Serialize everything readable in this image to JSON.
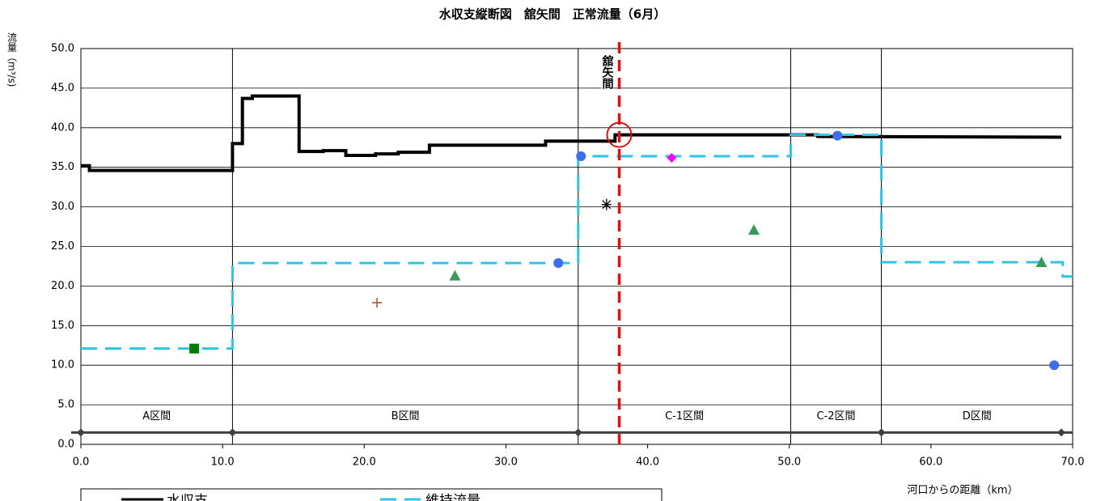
{
  "chart_data": {
    "type": "line",
    "title": "水収支縦断図　舘矢間　正常流量（6月）",
    "y_label": "流量（m³/s)",
    "x_label": "河口からの距離（km）",
    "xlim": [
      0,
      70
    ],
    "ylim": [
      0,
      50
    ],
    "xticks": [
      {
        "value": 0,
        "label": "0.0"
      },
      {
        "value": 10,
        "label": "10.0"
      },
      {
        "value": 20,
        "label": "20.0"
      },
      {
        "value": 30,
        "label": "30.0"
      },
      {
        "value": 40,
        "label": "40.0"
      },
      {
        "value": 50,
        "label": "50.0"
      },
      {
        "value": 60,
        "label": "60.0"
      },
      {
        "value": 70,
        "label": "70.0"
      }
    ],
    "yticks": [
      {
        "value": 0,
        "label": "0.0"
      },
      {
        "value": 5,
        "label": "5.0"
      },
      {
        "value": 10,
        "label": "10.0"
      },
      {
        "value": 15,
        "label": "15.0"
      },
      {
        "value": 20,
        "label": "20.0"
      },
      {
        "value": 25,
        "label": "25.0"
      },
      {
        "value": 30,
        "label": "30.0"
      },
      {
        "value": 35,
        "label": "35.0"
      },
      {
        "value": 40,
        "label": "40.0"
      },
      {
        "value": 45,
        "label": "45.0"
      },
      {
        "value": 50,
        "label": "50.0"
      }
    ],
    "grid": true,
    "series": [
      {
        "name": "水収支",
        "color": "#000000",
        "style": "solid",
        "x": [
          0,
          0.6,
          0.6,
          10.7,
          10.7,
          11.4,
          11.4,
          12.1,
          12.1,
          15.4,
          15.4,
          17.1,
          17.1,
          18.7,
          18.7,
          20.8,
          20.8,
          22.4,
          22.4,
          24.6,
          24.6,
          32.8,
          32.8,
          37.7,
          37.7,
          52.0,
          52.0,
          69.2
        ],
        "values": [
          35.2,
          35.2,
          34.6,
          34.6,
          38.0,
          38.0,
          43.7,
          43.7,
          44.0,
          44.0,
          37.0,
          37.0,
          37.1,
          37.1,
          36.5,
          36.5,
          36.7,
          36.7,
          36.9,
          36.9,
          37.8,
          37.8,
          38.3,
          38.3,
          39.1,
          39.1,
          38.9,
          38.8
        ]
      },
      {
        "name": "維持流量",
        "color": "#2ec4ea",
        "style": "dashed",
        "x": [
          0,
          10.7,
          10.7,
          35.1,
          35.1,
          50.1,
          50.1,
          56.5,
          56.5,
          69.3,
          69.3,
          70
        ],
        "values": [
          12.1,
          12.1,
          22.9,
          22.9,
          36.4,
          36.4,
          39.1,
          39.1,
          23.0,
          23.0,
          21.2,
          21.2
        ]
      },
      {
        "marker": "square",
        "color": "#007a00",
        "x": [
          8.0
        ],
        "values": [
          12.1
        ]
      },
      {
        "marker": "plus",
        "color": "#a0522d",
        "x": [
          20.9
        ],
        "values": [
          17.9
        ]
      },
      {
        "marker": "triangle",
        "color": "#3a9a5e",
        "x": [
          26.4,
          47.5,
          67.8
        ],
        "values": [
          21.3,
          27.1,
          23.0
        ]
      },
      {
        "marker": "circle",
        "color": "#3d6ef0",
        "x": [
          33.7,
          35.3,
          53.4,
          68.7
        ],
        "values": [
          22.9,
          36.4,
          39.0,
          10.0
        ]
      },
      {
        "marker": "diamond",
        "color": "#ff00ff",
        "x": [
          41.7
        ],
        "values": [
          36.2
        ]
      },
      {
        "marker": "asterisk",
        "color": "#000000",
        "x": [
          37.1
        ],
        "values": [
          30.3
        ]
      }
    ],
    "sections": {
      "baseline": 1.5,
      "color": "#404040",
      "nodes": [
        0,
        10.7,
        35.1,
        56.5,
        69.2
      ],
      "items": [
        {
          "label": "A区間",
          "start": 0,
          "end": 10.7
        },
        {
          "label": "B区間",
          "start": 10.7,
          "end": 35.1
        },
        {
          "label": "C-1区間",
          "start": 35.1,
          "end": 50.1
        },
        {
          "label": "C-2区間",
          "start": 50.1,
          "end": 56.5
        },
        {
          "label": "D区間",
          "start": 56.5,
          "end": 70
        }
      ]
    },
    "marker_line": {
      "x": 38.0,
      "label": "舘矢間",
      "color": "#e01010",
      "circle_y": 39.1
    }
  }
}
